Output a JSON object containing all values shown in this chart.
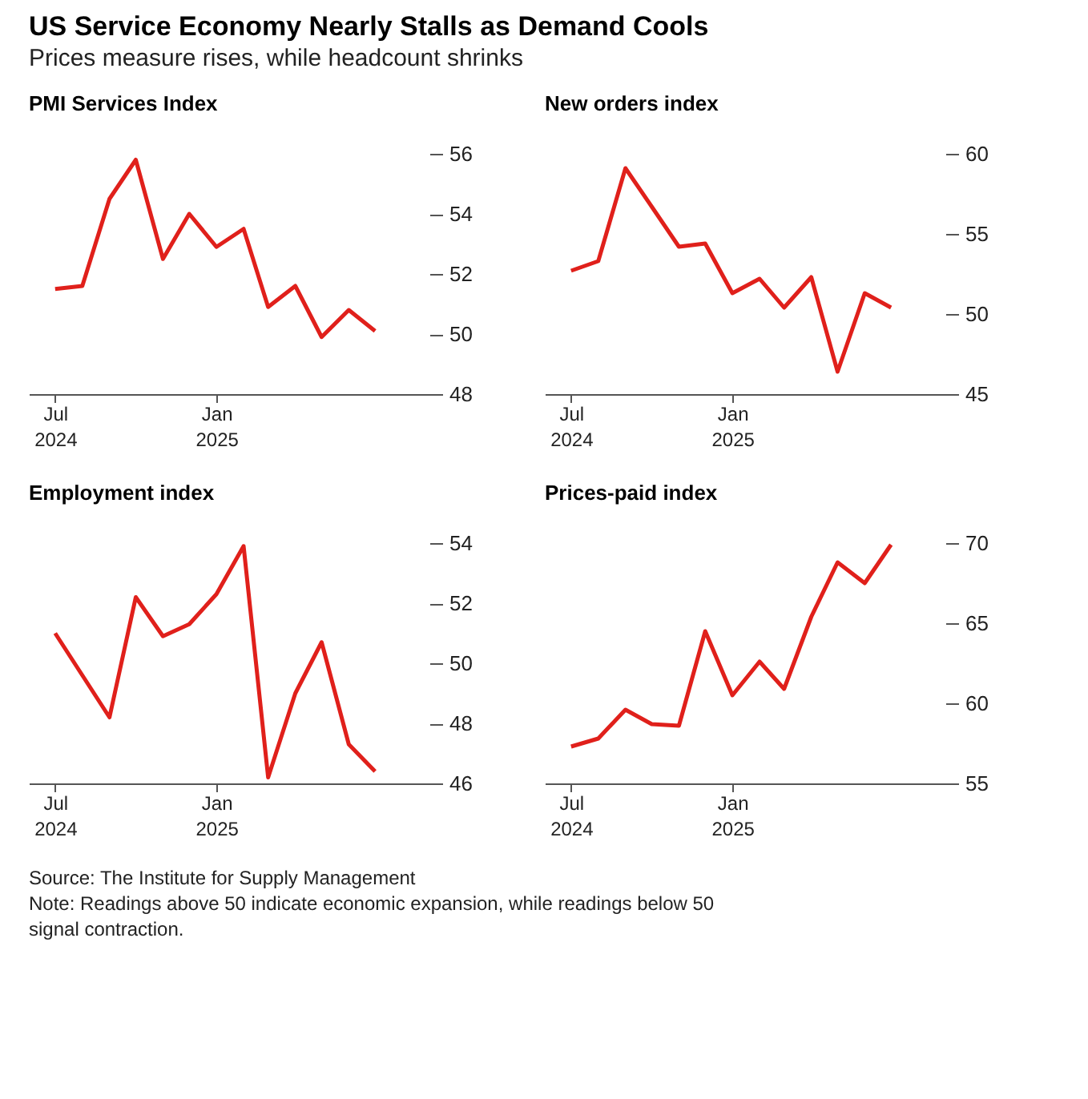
{
  "chart_data": [
    {
      "type": "line",
      "title": "PMI Services Index",
      "color": "#e0201b",
      "x": [
        "2024-07",
        "2024-08",
        "2024-09",
        "2024-10",
        "2024-11",
        "2024-12",
        "2025-01",
        "2025-02",
        "2025-03",
        "2025-04",
        "2025-05",
        "2025-06",
        "2025-07"
      ],
      "values": [
        51.5,
        51.6,
        54.5,
        55.8,
        52.5,
        54.0,
        52.9,
        53.5,
        50.9,
        51.6,
        49.9,
        50.8,
        50.1
      ],
      "xlim": [
        "2024-06",
        "2025-09"
      ],
      "xticks": [
        {
          "value": "2024-07",
          "label": "Jul 2024"
        },
        {
          "value": "2025-01",
          "label": "Jan 2025"
        }
      ],
      "ylim": [
        48,
        56
      ],
      "yticks": [
        48,
        50,
        52,
        54,
        56
      ]
    },
    {
      "type": "line",
      "title": "New orders index",
      "color": "#e0201b",
      "x": [
        "2024-07",
        "2024-08",
        "2024-09",
        "2024-10",
        "2024-11",
        "2024-12",
        "2025-01",
        "2025-02",
        "2025-03",
        "2025-04",
        "2025-05",
        "2025-06",
        "2025-07"
      ],
      "values": [
        52.7,
        53.3,
        59.1,
        56.7,
        54.2,
        54.4,
        51.3,
        52.2,
        50.4,
        52.3,
        46.4,
        51.3,
        50.4
      ],
      "xlim": [
        "2024-06",
        "2025-09"
      ],
      "xticks": [
        {
          "value": "2024-07",
          "label": "Jul 2024"
        },
        {
          "value": "2025-01",
          "label": "Jan 2025"
        }
      ],
      "ylim": [
        45,
        60
      ],
      "yticks": [
        45,
        50,
        55,
        60
      ]
    },
    {
      "type": "line",
      "title": "Employment index",
      "color": "#e0201b",
      "x": [
        "2024-07",
        "2024-08",
        "2024-09",
        "2024-10",
        "2024-11",
        "2024-12",
        "2025-01",
        "2025-02",
        "2025-03",
        "2025-04",
        "2025-05",
        "2025-06",
        "2025-07"
      ],
      "values": [
        51.0,
        49.6,
        48.2,
        52.2,
        50.9,
        51.3,
        52.3,
        53.9,
        46.2,
        49.0,
        50.7,
        47.3,
        46.4
      ],
      "xlim": [
        "2024-06",
        "2025-09"
      ],
      "xticks": [
        {
          "value": "2024-07",
          "label": "Jul 2024"
        },
        {
          "value": "2025-01",
          "label": "Jan 2025"
        }
      ],
      "ylim": [
        46,
        54
      ],
      "yticks": [
        46,
        48,
        50,
        52,
        54
      ]
    },
    {
      "type": "line",
      "title": "Prices-paid index",
      "color": "#e0201b",
      "x": [
        "2024-07",
        "2024-08",
        "2024-09",
        "2024-10",
        "2024-11",
        "2024-12",
        "2025-01",
        "2025-02",
        "2025-03",
        "2025-04",
        "2025-05",
        "2025-06",
        "2025-07"
      ],
      "values": [
        57.3,
        57.8,
        59.6,
        58.7,
        58.6,
        64.5,
        60.5,
        62.6,
        60.9,
        65.4,
        68.8,
        67.5,
        69.9
      ],
      "xlim": [
        "2024-06",
        "2025-09"
      ],
      "xticks": [
        {
          "value": "2024-07",
          "label": "Jul 2024"
        },
        {
          "value": "2025-01",
          "label": "Jan 2025"
        }
      ],
      "ylim": [
        55,
        70
      ],
      "yticks": [
        55,
        60,
        65,
        70
      ]
    },
    {
      "type": "other",
      "title": "US Service Economy Nearly Stalls as Demand Cools",
      "subtitle": "Prices measure rises, while headcount shrinks",
      "annotations": [
        "Source: The Institute for Supply Management",
        "Note: Readings above 50 indicate economic expansion, while readings below 50 signal contraction."
      ]
    }
  ]
}
